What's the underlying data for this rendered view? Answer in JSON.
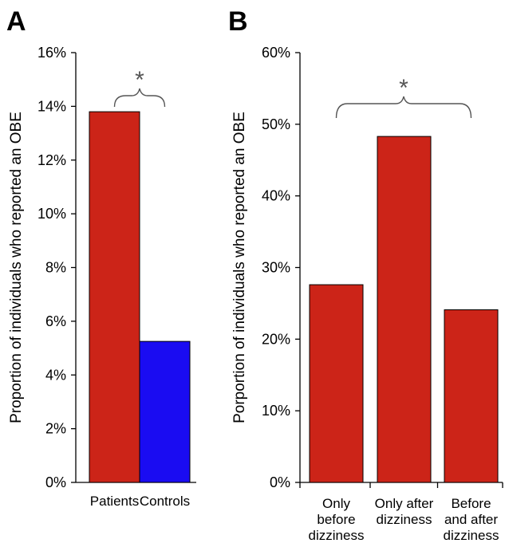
{
  "chart_data": [
    {
      "type": "bar",
      "panel": "A",
      "ylabel": "Proportion of individuals who reported an OBE",
      "ylim": [
        0,
        16
      ],
      "yticks": [
        "0%",
        "2%",
        "4%",
        "6%",
        "8%",
        "10%",
        "12%",
        "14%",
        "16%"
      ],
      "categories": [
        "Patients",
        "Controls"
      ],
      "values": [
        13.8,
        5.25
      ],
      "colors": [
        "#cc2418",
        "#1a0cf2"
      ],
      "significance": {
        "label": "*",
        "between": [
          0,
          1
        ]
      }
    },
    {
      "type": "bar",
      "panel": "B",
      "ylabel": "Porportion of individuals who reported an OBE",
      "ylim": [
        0,
        60
      ],
      "yticks": [
        "0%",
        "10%",
        "20%",
        "30%",
        "40%",
        "50%",
        "60%"
      ],
      "categories": [
        [
          "Only",
          "before",
          "dizziness"
        ],
        [
          "Only after",
          "dizziness"
        ],
        [
          "Before",
          "and after",
          "dizziness"
        ]
      ],
      "values": [
        27.6,
        48.3,
        24.1
      ],
      "colors": [
        "#cc2418",
        "#cc2418",
        "#cc2418"
      ],
      "significance": {
        "label": "*",
        "between": [
          0,
          2
        ]
      }
    }
  ]
}
